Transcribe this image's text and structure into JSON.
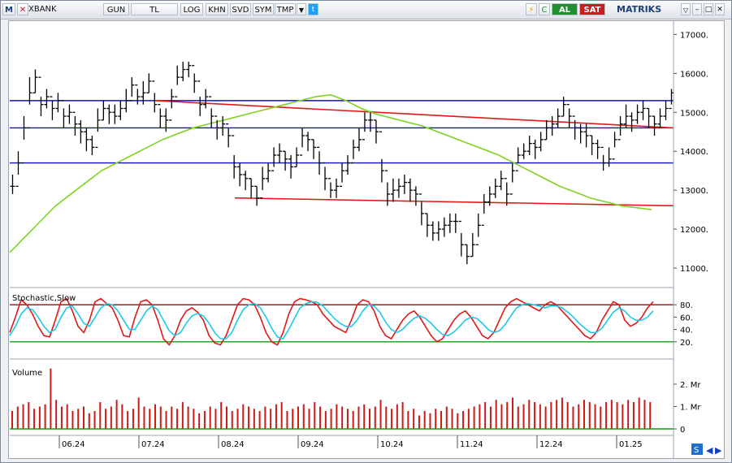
{
  "toolbar": {
    "logo_letter": "M",
    "symbol": "XBANK",
    "buttons": [
      "GUN",
      "TL",
      "LOG",
      "KHN",
      "SVD",
      "SYM",
      "TMP"
    ],
    "al_label": "AL",
    "sat_label": "SAT",
    "brand": "MATRIKS",
    "colors": {
      "al": "#1f8f2f",
      "sat": "#c81e1e",
      "brand": "#1c3f7a"
    }
  },
  "chart_data": [
    {
      "type": "candlestick",
      "title": "",
      "ylim": [
        10500,
        17300
      ],
      "y_ticks": [
        "17000.",
        "16000.",
        "15000.",
        "14000.",
        "13000.",
        "12000.",
        "11000."
      ],
      "x_labels": [
        "06.24",
        "07.24",
        "08.24",
        "09.24",
        "10.24",
        "11.24",
        "12.24",
        "01.25"
      ],
      "close": [
        13100,
        13700,
        14600,
        15500,
        15900,
        15200,
        15400,
        15100,
        15300,
        14900,
        15000,
        14700,
        14500,
        14300,
        14100,
        14800,
        15100,
        15000,
        14900,
        15100,
        15300,
        15700,
        15400,
        15500,
        15800,
        15200,
        14900,
        14800,
        15400,
        15900,
        16100,
        16200,
        15800,
        15200,
        15400,
        14900,
        14600,
        14700,
        14400,
        13600,
        13400,
        13300,
        13100,
        12800,
        13300,
        13500,
        13900,
        14000,
        13800,
        13600,
        13900,
        14400,
        14300,
        14100,
        13700,
        13300,
        13000,
        13100,
        13500,
        13700,
        14100,
        14300,
        14800,
        14800,
        14500,
        13500,
        12900,
        13000,
        13100,
        13200,
        13000,
        12900,
        12400,
        12100,
        11900,
        12000,
        12100,
        12200,
        12200,
        11600,
        11300,
        11600,
        12100,
        12700,
        12900,
        13100,
        13300,
        12900,
        13500,
        13900,
        14000,
        14200,
        14100,
        14300,
        14600,
        14700,
        14900,
        15200,
        14900,
        14600,
        14500,
        14400,
        14200,
        14100,
        13700,
        13800,
        14300,
        14700,
        14900,
        14800,
        15000,
        15100,
        14900,
        14700,
        14900,
        15100,
        15500
      ],
      "high": [
        13400,
        14000,
        14900,
        15900,
        16100,
        15400,
        15600,
        15300,
        15500,
        15100,
        15200,
        14900,
        14800,
        14600,
        14400,
        15100,
        15300,
        15200,
        15200,
        15300,
        15600,
        15900,
        15600,
        15800,
        16000,
        15500,
        15100,
        15100,
        15600,
        16200,
        16300,
        16300,
        16000,
        15400,
        15600,
        15100,
        14800,
        14900,
        14600,
        13900,
        13700,
        13500,
        13300,
        13100,
        13600,
        13700,
        14100,
        14200,
        14000,
        13900,
        14100,
        14600,
        14500,
        14300,
        14000,
        13600,
        13200,
        13300,
        13700,
        13900,
        14300,
        14600,
        15000,
        15000,
        14800,
        13800,
        13200,
        13300,
        13300,
        13400,
        13300,
        13100,
        12700,
        12400,
        12200,
        12200,
        12300,
        12400,
        12400,
        11900,
        11600,
        11900,
        12400,
        12900,
        13100,
        13300,
        13500,
        13200,
        13700,
        14100,
        14200,
        14400,
        14300,
        14500,
        14800,
        14900,
        15100,
        15400,
        15100,
        14800,
        14700,
        14700,
        14400,
        14300,
        13900,
        14100,
        14500,
        14900,
        15200,
        15000,
        15200,
        15300,
        15100,
        14900,
        15100,
        15300,
        15600
      ],
      "low": [
        12900,
        13400,
        14300,
        15200,
        15500,
        14900,
        15100,
        14800,
        15000,
        14600,
        14700,
        14400,
        14200,
        14000,
        13900,
        14500,
        14800,
        14700,
        14700,
        14800,
        15000,
        15400,
        15200,
        15200,
        15500,
        15000,
        14600,
        14500,
        15100,
        15700,
        15800,
        15900,
        15500,
        14900,
        15100,
        14600,
        14300,
        14400,
        14100,
        13300,
        13100,
        13000,
        12800,
        12600,
        13000,
        13200,
        13600,
        13700,
        13500,
        13300,
        13600,
        14100,
        14000,
        13800,
        13400,
        13000,
        12800,
        12800,
        13200,
        13400,
        13800,
        14000,
        14500,
        14500,
        14200,
        13200,
        12600,
        12700,
        12800,
        12900,
        12700,
        12600,
        12100,
        11800,
        11700,
        11700,
        11800,
        11900,
        11900,
        11300,
        11100,
        11300,
        11800,
        12400,
        12600,
        12800,
        13000,
        12600,
        13200,
        13700,
        13800,
        13900,
        13800,
        14000,
        14300,
        14400,
        14600,
        14900,
        14600,
        14300,
        14200,
        14100,
        13900,
        13800,
        13500,
        13600,
        14100,
        14400,
        14600,
        14500,
        14700,
        14800,
        14600,
        14400,
        14600,
        14800,
        15200
      ],
      "sma": [
        11400,
        11800,
        12200,
        12600,
        12900,
        13200,
        13500,
        13700,
        13900,
        14100,
        14300,
        14450,
        14600,
        14700,
        14800,
        14900,
        15000,
        15100,
        15200,
        15300,
        15400,
        15450,
        15300,
        15100,
        14950,
        14850,
        14750,
        14650,
        14500,
        14350,
        14200,
        14050,
        13900,
        13700,
        13500,
        13300,
        13100,
        12950,
        12800,
        12700,
        12600,
        12550,
        12500
      ],
      "horizontal_levels": [
        15300,
        14600,
        13700
      ],
      "trend_lines": [
        {
          "from": [
            "07.24",
            15300
          ],
          "to": [
            "01.25",
            14600
          ]
        },
        {
          "from": [
            "08.24",
            12800
          ],
          "to": [
            "01.25",
            12600
          ]
        }
      ],
      "colors": {
        "bars": "#000000",
        "sma": "#7ed321",
        "levels": "#1010c8",
        "trend": "#e01818",
        "grid": "#e6e6e6"
      }
    },
    {
      "type": "line",
      "title": "Stochastic,Slow",
      "ylim": [
        0,
        100
      ],
      "y_ticks": [
        "80.",
        "60.",
        "40.",
        "20."
      ],
      "overbought": 80,
      "oversold": 20,
      "series": [
        {
          "name": "",
          "color": "#e01818",
          "values": [
            35,
            60,
            88,
            80,
            65,
            45,
            30,
            28,
            55,
            85,
            90,
            70,
            45,
            35,
            55,
            85,
            90,
            82,
            75,
            55,
            30,
            28,
            60,
            85,
            88,
            80,
            55,
            25,
            15,
            30,
            55,
            70,
            75,
            68,
            55,
            30,
            18,
            15,
            30,
            55,
            80,
            90,
            88,
            80,
            60,
            35,
            20,
            15,
            35,
            65,
            85,
            90,
            88,
            85,
            80,
            65,
            55,
            45,
            40,
            35,
            55,
            80,
            88,
            85,
            70,
            45,
            30,
            25,
            40,
            55,
            65,
            70,
            60,
            45,
            30,
            20,
            25,
            40,
            55,
            65,
            70,
            60,
            45,
            30,
            25,
            35,
            55,
            75,
            85,
            90,
            85,
            80,
            75,
            70,
            80,
            85,
            80,
            70,
            60,
            50,
            40,
            30,
            25,
            35,
            55,
            70,
            85,
            80,
            55,
            45,
            50,
            60,
            75,
            85
          ]
        },
        {
          "name": "",
          "color": "#1ec8e8",
          "values": [
            30,
            45,
            65,
            75,
            72,
            60,
            45,
            35,
            40,
            60,
            75,
            78,
            65,
            50,
            45,
            60,
            75,
            82,
            80,
            70,
            55,
            40,
            40,
            55,
            70,
            78,
            72,
            55,
            38,
            30,
            35,
            50,
            62,
            66,
            62,
            50,
            35,
            25,
            25,
            35,
            55,
            72,
            80,
            82,
            75,
            60,
            42,
            28,
            25,
            40,
            58,
            75,
            82,
            85,
            84,
            78,
            68,
            58,
            50,
            45,
            45,
            55,
            70,
            80,
            78,
            68,
            52,
            40,
            35,
            40,
            50,
            58,
            62,
            58,
            50,
            40,
            32,
            30,
            36,
            45,
            55,
            60,
            58,
            50,
            40,
            35,
            38,
            48,
            62,
            75,
            80,
            82,
            80,
            78,
            75,
            78,
            78,
            75,
            68,
            60,
            50,
            42,
            35,
            35,
            42,
            55,
            68,
            75,
            70,
            60,
            55,
            55,
            60,
            70
          ]
        }
      ],
      "colors": {
        "overbought": "#8b1010",
        "oversold": "#10a010"
      }
    },
    {
      "type": "bar",
      "title": "Volume",
      "ylim": [
        0,
        2.8
      ],
      "y_ticks": [
        "2. Mr",
        "1. Mr",
        "0"
      ],
      "values": [
        0.8,
        1.0,
        1.1,
        1.2,
        0.9,
        1.0,
        1.1,
        2.7,
        1.3,
        1.0,
        1.1,
        0.8,
        0.9,
        1.0,
        0.7,
        0.8,
        1.2,
        0.9,
        1.0,
        1.3,
        1.1,
        0.8,
        0.9,
        1.4,
        1.0,
        0.9,
        1.1,
        1.0,
        0.8,
        1.0,
        0.9,
        1.2,
        1.0,
        0.9,
        0.7,
        0.8,
        1.0,
        0.9,
        1.2,
        1.0,
        0.8,
        0.9,
        1.1,
        1.0,
        0.9,
        0.8,
        1.0,
        0.9,
        1.1,
        1.2,
        0.8,
        0.9,
        1.0,
        1.1,
        0.9,
        1.2,
        1.0,
        0.8,
        0.9,
        1.1,
        1.0,
        0.9,
        0.8,
        1.0,
        1.1,
        0.9,
        1.0,
        1.3,
        1.0,
        0.9,
        1.1,
        1.2,
        0.8,
        0.9,
        0.6,
        0.8,
        0.7,
        0.9,
        0.8,
        1.0,
        0.9,
        0.7,
        0.8,
        0.9,
        1.0,
        1.1,
        1.2,
        1.0,
        1.3,
        1.1,
        1.2,
        1.4,
        1.0,
        1.1,
        1.3,
        1.2,
        1.1,
        1.0,
        1.2,
        1.3,
        1.4,
        1.2,
        1.0,
        1.1,
        1.3,
        1.2,
        1.1,
        1.0,
        1.2,
        1.3,
        1.2,
        1.1,
        1.3,
        1.2,
        1.4,
        1.3,
        1.2
      ],
      "colors": {
        "bars": "#d01818",
        "baseline": "#10a010"
      }
    }
  ]
}
